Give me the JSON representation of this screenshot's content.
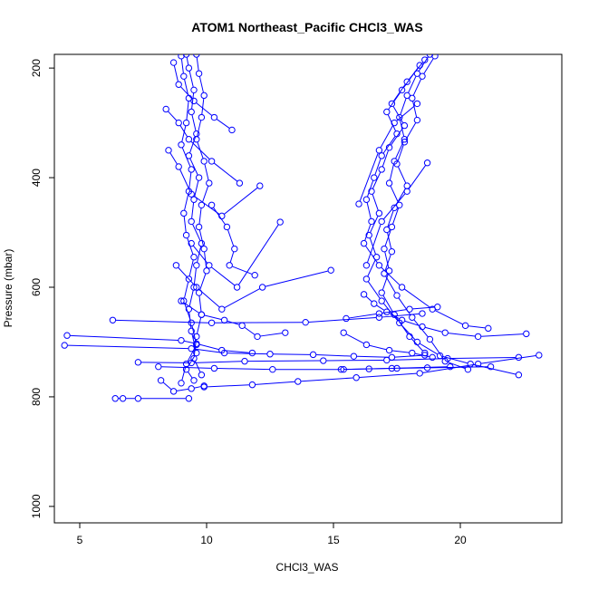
{
  "chart_data": {
    "type": "line",
    "title": "ATOM1 Northeast_Pacific CHCl3_WAS",
    "xlabel": "CHCl3_WAS",
    "ylabel": "Pressure (mbar)",
    "xlim": [
      4,
      24
    ],
    "ylim": [
      1030,
      175
    ],
    "y_reversed": true,
    "x_ticks": [
      5,
      10,
      15,
      20
    ],
    "y_ticks": [
      200,
      400,
      600,
      800,
      1000
    ],
    "grid": false,
    "color": "#0000ff",
    "marker": "open-circle",
    "series": [
      {
        "x": [
          9.2,
          9.3,
          9.5,
          9.4,
          9.6,
          9.3,
          9.7,
          9.5,
          9.4,
          9.8,
          9.6,
          9.5,
          9.3,
          9.4,
          9.6,
          9.2,
          9.5
        ],
        "y": [
          175,
          200,
          240,
          280,
          320,
          360,
          400,
          440,
          480,
          520,
          560,
          600,
          640,
          680,
          720,
          750,
          770
        ]
      },
      {
        "x": [
          9.6,
          9.7,
          9.9,
          9.8,
          9.6,
          9.9,
          10.1,
          9.8,
          9.7,
          9.9,
          10.0,
          9.7,
          9.8,
          9.6,
          9.5,
          9.8
        ],
        "y": [
          175,
          210,
          250,
          290,
          330,
          370,
          410,
          450,
          490,
          530,
          570,
          610,
          650,
          690,
          730,
          760
        ]
      },
      {
        "x": [
          9.0,
          9.1,
          9.3,
          9.2,
          9.0,
          9.4,
          9.3,
          9.1,
          9.2,
          9.5,
          9.3,
          9.1,
          9.4,
          9.6,
          9.2,
          9.0
        ],
        "y": [
          178,
          215,
          255,
          300,
          340,
          385,
          425,
          465,
          505,
          545,
          585,
          625,
          665,
          705,
          740,
          775
        ]
      },
      {
        "x": [
          8.7,
          8.9,
          9.5,
          10.3,
          11.0
        ],
        "y": [
          190,
          230,
          260,
          290,
          313
        ]
      },
      {
        "x": [
          8.4,
          8.9,
          9.3,
          10.2,
          11.3
        ],
        "y": [
          275,
          300,
          330,
          370,
          410
        ]
      },
      {
        "x": [
          8.5,
          8.9,
          9.4,
          10.6,
          12.1
        ],
        "y": [
          350,
          380,
          430,
          470,
          415
        ]
      },
      {
        "x": [
          10.2,
          10.8,
          11.1,
          10.9,
          11.9
        ],
        "y": [
          450,
          490,
          530,
          560,
          578
        ]
      },
      {
        "x": [
          9.4,
          10.1,
          11.2,
          12.9
        ],
        "y": [
          520,
          560,
          600,
          481
        ]
      },
      {
        "x": [
          8.8,
          9.6,
          10.6,
          12.2,
          14.9
        ],
        "y": [
          560,
          600,
          640,
          600,
          569
        ]
      },
      {
        "x": [
          9.0,
          9.8,
          10.7,
          11.4,
          12.0,
          13.1
        ],
        "y": [
          625,
          650,
          660,
          670,
          690,
          683
        ]
      },
      {
        "x": [
          4.5,
          9.0,
          9.6,
          10.6,
          11.8
        ],
        "y": [
          688,
          697,
          703,
          715,
          720
        ]
      },
      {
        "x": [
          4.4,
          9.4,
          10.7,
          12.5,
          14.2,
          15.8,
          17.3,
          18.6
        ],
        "y": [
          706,
          712,
          720,
          722,
          723,
          726,
          728,
          724
        ]
      },
      {
        "x": [
          6.3,
          10.2,
          13.9,
          16.8,
          18.5
        ],
        "y": [
          660,
          665,
          664,
          655,
          648
        ]
      },
      {
        "x": [
          7.3,
          9.4,
          11.5,
          14.6,
          17.1,
          19.5,
          22.3
        ],
        "y": [
          737,
          738,
          735,
          734,
          733,
          730,
          728
        ]
      },
      {
        "x": [
          8.1,
          10.3,
          12.6,
          15.4,
          17.3,
          19.6
        ],
        "y": [
          745,
          748,
          750,
          750,
          748,
          745
        ]
      },
      {
        "x": [
          9.9,
          11.8,
          13.6,
          15.9,
          18.4,
          20.7,
          23.1
        ],
        "y": [
          782,
          778,
          772,
          765,
          757,
          740,
          724
        ]
      },
      {
        "x": [
          6.4,
          6.7,
          7.3,
          9.3
        ],
        "y": [
          803,
          803,
          803,
          803
        ]
      },
      {
        "x": [
          8.2,
          8.7,
          9.4,
          9.9
        ],
        "y": [
          770,
          790,
          785,
          780
        ]
      },
      {
        "x": [
          18.8,
          18.3,
          17.9,
          17.6,
          17.8,
          17.4,
          17.2,
          17.6,
          17.3,
          17.0,
          17.2,
          16.9,
          17.4,
          18.0,
          18.6
        ],
        "y": [
          175,
          210,
          250,
          290,
          330,
          370,
          410,
          450,
          490,
          530,
          570,
          610,
          650,
          690,
          720
        ]
      },
      {
        "x": [
          19.0,
          18.5,
          18.1,
          18.3,
          17.8,
          17.5,
          17.9,
          17.4,
          17.1,
          17.3,
          17.0,
          17.5,
          18.1,
          18.8,
          19.4,
          20.3
        ],
        "y": [
          178,
          215,
          255,
          295,
          335,
          375,
          415,
          455,
          495,
          535,
          575,
          615,
          655,
          695,
          735,
          750
        ]
      },
      {
        "x": [
          18.6,
          17.9,
          17.3,
          17.8,
          17.2,
          16.9,
          16.5,
          16.8,
          16.4,
          16.7,
          16.3,
          16.9,
          17.6,
          18.3,
          19.2,
          20.4,
          22.3
        ],
        "y": [
          185,
          225,
          265,
          305,
          345,
          385,
          425,
          465,
          505,
          545,
          585,
          625,
          665,
          700,
          725,
          740,
          760
        ]
      },
      {
        "x": [
          18.4,
          17.7,
          17.1,
          17.5,
          16.9,
          16.6,
          16.3,
          16.5,
          16.2,
          16.8,
          17.7,
          18.9,
          20.2,
          21.1
        ],
        "y": [
          195,
          240,
          280,
          320,
          360,
          400,
          440,
          480,
          520,
          560,
          600,
          640,
          670,
          675
        ]
      },
      {
        "x": [
          18.3,
          17.4,
          16.8,
          16.0
        ],
        "y": [
          265,
          300,
          350,
          448
        ]
      },
      {
        "x": [
          18.7,
          17.9,
          16.9,
          16.3
        ],
        "y": [
          373,
          425,
          480,
          560
        ]
      },
      {
        "x": [
          16.2,
          16.6,
          17.1,
          17.7,
          18.5,
          19.4,
          20.7,
          22.6
        ],
        "y": [
          613,
          630,
          645,
          660,
          672,
          683,
          690,
          685
        ]
      },
      {
        "x": [
          15.4,
          16.3,
          17.2,
          18.1,
          18.9
        ],
        "y": [
          683,
          705,
          715,
          720,
          728
        ]
      },
      {
        "x": [
          15.5,
          16.8,
          18.0,
          19.1
        ],
        "y": [
          657,
          648,
          640,
          636
        ]
      },
      {
        "x": [
          15.3,
          16.4,
          17.5,
          18.7,
          21.2
        ],
        "y": [
          750,
          749,
          748,
          747,
          745
        ]
      }
    ]
  }
}
